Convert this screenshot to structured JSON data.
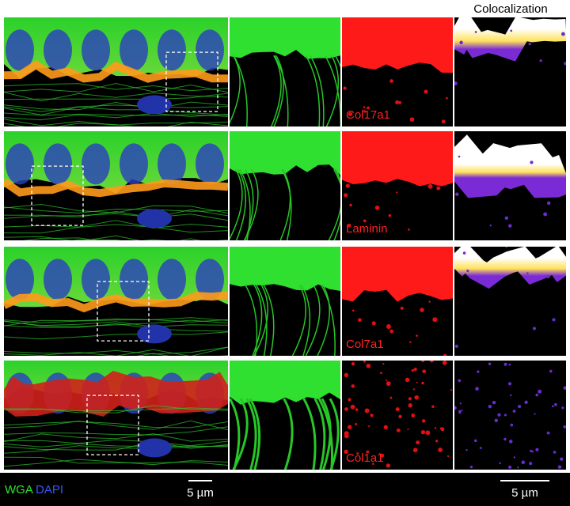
{
  "header": {
    "title": "Colocalization"
  },
  "markers": [
    "Col17a1",
    "Laminin",
    "Col7a1",
    "Col1a1"
  ],
  "legend": {
    "stains": [
      "WGA",
      "DAPI"
    ]
  },
  "scale_bars": {
    "left": "5 µm",
    "right": "5 µm"
  }
}
